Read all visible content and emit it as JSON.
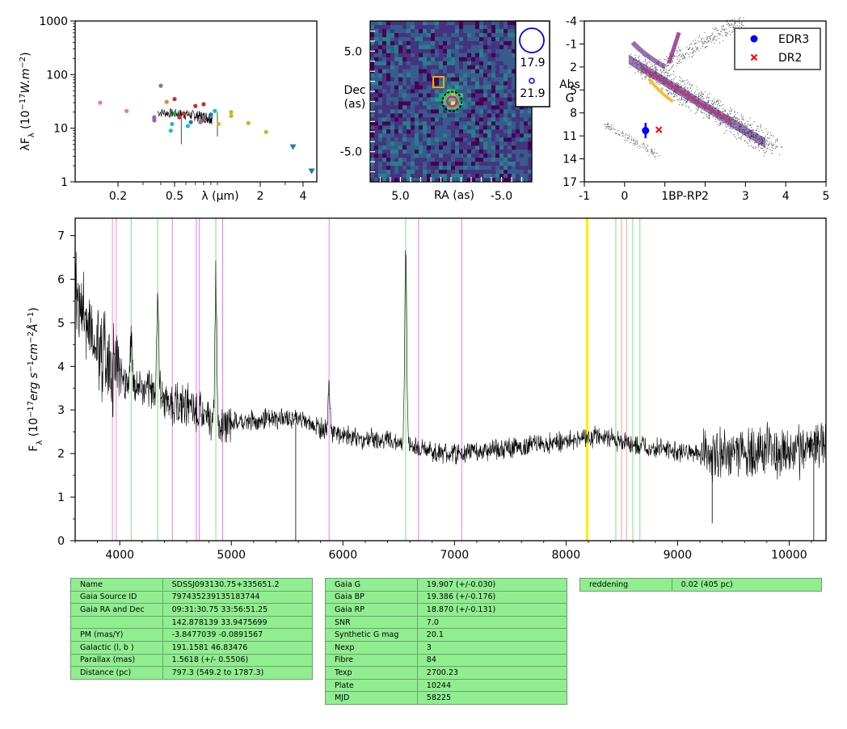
{
  "chart_data": [
    {
      "type": "scatter",
      "ylabel": "λF_λ (10^-17 W.m^-2)",
      "xlabel": "λ (μm)",
      "x_scale": "log",
      "y_scale": "log",
      "xlim": [
        0.1,
        5.0
      ],
      "ylim": [
        1,
        1000
      ],
      "x_ticks": [
        "0.2",
        "0.5",
        "2",
        "4"
      ],
      "y_ticks": [
        "1",
        "10",
        "100",
        "1000"
      ],
      "points": [
        {
          "x": 0.15,
          "y": 30,
          "color": "#e377c2"
        },
        {
          "x": 0.23,
          "y": 21,
          "color": "#e377c2"
        },
        {
          "x": 0.36,
          "y": 14,
          "color": "#9467bd"
        },
        {
          "x": 0.36,
          "y": 16,
          "color": "#9467bd"
        },
        {
          "x": 0.36,
          "y": 15,
          "color": "#9467bd"
        },
        {
          "x": 0.4,
          "y": 62,
          "color": "#7f7f7f"
        },
        {
          "x": 0.44,
          "y": 31,
          "color": "#ff7f0e"
        },
        {
          "x": 0.47,
          "y": 9,
          "color": "#17becf"
        },
        {
          "x": 0.48,
          "y": 12,
          "color": "#17becf"
        },
        {
          "x": 0.5,
          "y": 35,
          "color": "#d62728"
        },
        {
          "x": 0.5,
          "y": 19,
          "color": "#2ca02c"
        },
        {
          "x": 0.54,
          "y": 16,
          "color": "#d62728"
        },
        {
          "x": 0.58,
          "y": 19,
          "color": "#d62728"
        },
        {
          "x": 0.62,
          "y": 11,
          "color": "#17becf"
        },
        {
          "x": 0.65,
          "y": 13,
          "color": "#1f77b4"
        },
        {
          "x": 0.7,
          "y": 26,
          "color": "#d62728"
        },
        {
          "x": 0.76,
          "y": 13,
          "color": "#9467bd"
        },
        {
          "x": 0.8,
          "y": 28,
          "color": "#d62728"
        },
        {
          "x": 0.8,
          "y": 14,
          "color": "#8c564b"
        },
        {
          "x": 0.9,
          "y": 18,
          "color": "#1f77b4"
        },
        {
          "x": 0.96,
          "y": 21,
          "color": "#17becf"
        },
        {
          "x": 1.02,
          "y": 12,
          "color": "#bcbd22"
        },
        {
          "x": 1.25,
          "y": 20,
          "color": "#bcbd22"
        },
        {
          "x": 1.25,
          "y": 17,
          "color": "#bcbd22"
        },
        {
          "x": 1.65,
          "y": 12.5,
          "color": "#bcbd22"
        },
        {
          "x": 2.2,
          "y": 8.5,
          "color": "#bcbd22"
        }
      ],
      "upper_limits": [
        {
          "x": 3.4,
          "y": 4.5,
          "color": "#1f77b4"
        },
        {
          "x": 4.6,
          "y": 1.6,
          "color": "#1f77b4"
        }
      ]
    },
    {
      "type": "heatmap",
      "xlabel": "RA (as)",
      "ylabel": "Dec\n(as)",
      "xlim": [
        8,
        -8
      ],
      "ylim": [
        -8,
        8
      ],
      "x_ticks": [
        "5.0",
        "-5.0"
      ],
      "y_ticks": [
        "5.0",
        "-5.0"
      ],
      "legend": [
        {
          "label": "17.9",
          "marker": "large-circle",
          "color": "#0000ff"
        },
        {
          "label": "21.9",
          "marker": "small-circle",
          "color": "#0000ff"
        }
      ],
      "markers": [
        {
          "shape": "square",
          "x": 0.8,
          "y": 1.0,
          "color": "#ffa500"
        },
        {
          "shape": "circle",
          "x": -0.1,
          "y": 0.0,
          "color": "#000000"
        },
        {
          "shape": "circle",
          "x": -0.1,
          "y": 0.0,
          "color": "#ff00aa"
        }
      ]
    },
    {
      "type": "scatter",
      "xlabel": "BP-RP",
      "ylabel": "Abs\nG",
      "xlim": [
        -1,
        5
      ],
      "ylim": [
        17,
        -4
      ],
      "x_ticks": [
        "-1",
        "0",
        "1",
        "2",
        "3",
        "4",
        "5"
      ],
      "y_ticks": [
        "-4",
        "-1",
        "2",
        "5",
        "8",
        "11",
        "14",
        "17"
      ],
      "legend": [
        {
          "label": "EDR3",
          "marker": "circle",
          "color": "#0000ff"
        },
        {
          "label": "DR2",
          "marker": "x",
          "color": "#ff0000"
        }
      ],
      "points": [
        {
          "series": "EDR3",
          "x": 0.52,
          "y": 10.3,
          "yerr": 1.0
        },
        {
          "series": "DR2",
          "x": 0.85,
          "y": 10.2
        }
      ]
    },
    {
      "type": "line",
      "xlabel": "",
      "ylabel": "F_λ (10^-17 erg s^-1 cm^-2 Å^-1)",
      "xlim": [
        3600,
        10330
      ],
      "ylim": [
        0,
        7.4
      ],
      "x_ticks": [
        "4000",
        "5000",
        "6000",
        "7000",
        "8000",
        "9000",
        "10000"
      ],
      "y_ticks": [
        "0",
        "1",
        "2",
        "3",
        "4",
        "5",
        "6",
        "7"
      ],
      "continuum": [
        [
          3600,
          5.8
        ],
        [
          3700,
          5.0
        ],
        [
          3800,
          4.6
        ],
        [
          3900,
          4.1
        ],
        [
          4000,
          3.8
        ],
        [
          4100,
          3.6
        ],
        [
          4200,
          3.5
        ],
        [
          4300,
          3.4
        ],
        [
          4400,
          3.3
        ],
        [
          4500,
          3.1
        ],
        [
          4600,
          3.1
        ],
        [
          4700,
          2.9
        ],
        [
          4800,
          2.8
        ],
        [
          4900,
          2.6
        ],
        [
          5000,
          2.7
        ],
        [
          5200,
          2.75
        ],
        [
          5400,
          2.8
        ],
        [
          5600,
          2.8
        ],
        [
          5800,
          2.6
        ],
        [
          6000,
          2.4
        ],
        [
          6200,
          2.35
        ],
        [
          6400,
          2.3
        ],
        [
          6600,
          2.2
        ],
        [
          6800,
          2.05
        ],
        [
          7000,
          2.0
        ],
        [
          7200,
          2.05
        ],
        [
          7400,
          2.1
        ],
        [
          7600,
          2.15
        ],
        [
          7800,
          2.25
        ],
        [
          8000,
          2.3
        ],
        [
          8200,
          2.4
        ],
        [
          8400,
          2.35
        ],
        [
          8600,
          2.2
        ],
        [
          8800,
          2.15
        ],
        [
          9000,
          2.05
        ],
        [
          9200,
          2.0
        ],
        [
          9400,
          2.05
        ],
        [
          9600,
          2.0
        ],
        [
          9800,
          2.1
        ],
        [
          10000,
          1.9
        ],
        [
          10200,
          2.2
        ],
        [
          10330,
          2.3
        ]
      ],
      "emission_lines": [
        [
          4102,
          4.6
        ],
        [
          4340,
          5.7
        ],
        [
          4861,
          6.0
        ],
        [
          5876,
          3.5
        ],
        [
          6563,
          6.7
        ]
      ],
      "line_markers": [
        {
          "x": 3934,
          "color": "#ff88cc"
        },
        {
          "x": 3968,
          "color": "#ff88cc"
        },
        {
          "x": 4102,
          "color": "#80e080"
        },
        {
          "x": 4340,
          "color": "#80e080"
        },
        {
          "x": 4471,
          "color": "#ee77ee"
        },
        {
          "x": 4686,
          "color": "#ee77ee"
        },
        {
          "x": 4713,
          "color": "#ee77ee"
        },
        {
          "x": 4861,
          "color": "#80e080"
        },
        {
          "x": 4922,
          "color": "#ee77ee"
        },
        {
          "x": 5876,
          "color": "#ee77ee"
        },
        {
          "x": 6563,
          "color": "#80e080"
        },
        {
          "x": 6678,
          "color": "#ee77ee"
        },
        {
          "x": 7065,
          "color": "#ee77ee"
        },
        {
          "x": 8183,
          "color": "#ffee00"
        },
        {
          "x": 8195,
          "color": "#ffee00"
        },
        {
          "x": 8446,
          "color": "#80e080"
        },
        {
          "x": 8498,
          "color": "#ff9999"
        },
        {
          "x": 8542,
          "color": "#ff9999"
        },
        {
          "x": 8598,
          "color": "#80e080"
        },
        {
          "x": 8662,
          "color": "#80e080"
        }
      ]
    }
  ],
  "tables": {
    "info": [
      [
        "Name",
        "SDSSJ093130.75+335651.2"
      ],
      [
        "Gaia Source ID",
        "797435239135183744"
      ],
      [
        "Gaia RA and Dec",
        "09:31:30.75    33:56:51.25"
      ],
      [
        "",
        "142.878139    33.9475699"
      ],
      [
        "PM (mas/Y)",
        "-3.8477039    -0.0891567"
      ],
      [
        "Galactic (l, b )",
        "191.1581    46.83476"
      ],
      [
        "Parallax (mas)",
        "1.5618 (+/- 0.5506)"
      ],
      [
        "Distance (pc)",
        "797.3 (549.2 to 1787.3)"
      ]
    ],
    "gaia": [
      [
        "Gaia G",
        "19.907 (+/-0.030)"
      ],
      [
        "Gaia BP",
        "19.386 (+/-0.176)"
      ],
      [
        "Gaia RP",
        "18.870 (+/-0.131)"
      ],
      [
        "SNR",
        "7.0"
      ],
      [
        "Synthetic G mag",
        "20.1"
      ],
      [
        "Nexp",
        "3"
      ],
      [
        "Fibre",
        "84"
      ],
      [
        "Texp",
        "2700.23"
      ],
      [
        "Plate",
        "10244"
      ],
      [
        "MJD",
        "58225"
      ]
    ],
    "extra": [
      [
        "reddening",
        "0.02 (405 pc)"
      ]
    ]
  }
}
